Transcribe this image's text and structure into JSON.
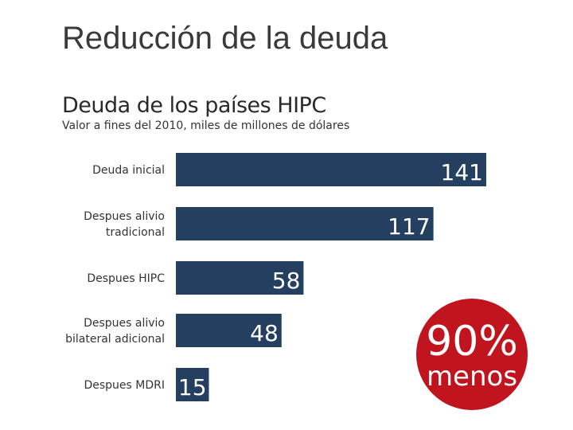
{
  "page": {
    "title": "Reducción de la deuda"
  },
  "chart_data": {
    "type": "bar",
    "orientation": "horizontal",
    "title": "Deuda de los países HIPC",
    "subtitle": "Valor a fines del 2010, miles de millones de dólares",
    "categories": [
      "Deuda inicial",
      "Despues alivio tradicional",
      "Despues HIPC",
      "Despues alivio bilateral adicional",
      "Despues MDRI"
    ],
    "category_lines": [
      [
        "Deuda inicial"
      ],
      [
        "Despues alivio",
        "tradicional"
      ],
      [
        "Despues HIPC"
      ],
      [
        "Despues alivio",
        "bilateral adicional"
      ],
      [
        "Despues MDRI"
      ]
    ],
    "values": [
      141,
      117,
      58,
      48,
      15
    ],
    "xlim": [
      0,
      141
    ],
    "grid": false,
    "colors": {
      "bar": "#243f60",
      "label": "#ffffff"
    }
  },
  "badge": {
    "percent": "90%",
    "word": "menos",
    "color": "#c0141f"
  }
}
